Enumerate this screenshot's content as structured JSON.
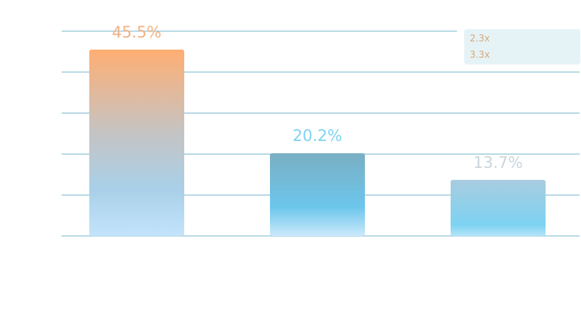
{
  "chart_data": {
    "type": "bar",
    "categories": [
      null,
      null,
      null
    ],
    "values": [
      45.5,
      20.2,
      13.7
    ],
    "value_labels": [
      "45.5%",
      "20.2%",
      "13.7%"
    ],
    "ylim": [
      0,
      50
    ],
    "yticks": [
      0,
      10,
      20,
      30,
      40,
      50
    ],
    "grid": true,
    "annotations": [
      "2.3x",
      "3.3x"
    ]
  }
}
